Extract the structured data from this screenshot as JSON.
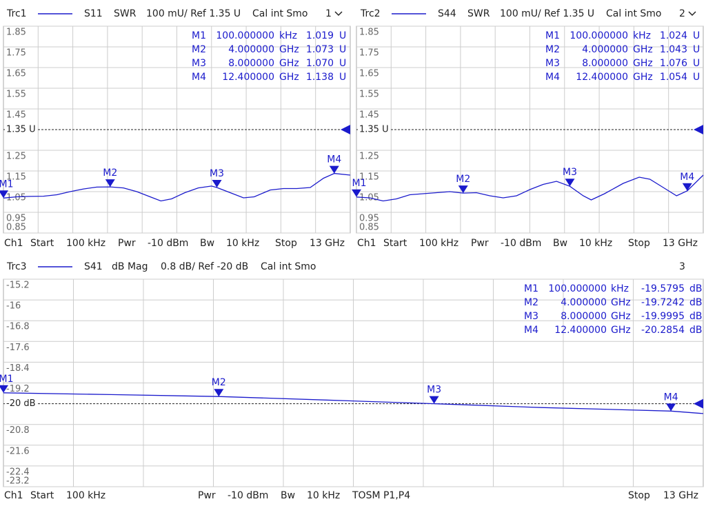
{
  "chart_data": [
    {
      "type": "line",
      "trace": "Trc1",
      "parameter": "S11",
      "format": "SWR",
      "scale": "100 mU/ Ref 1.35 U",
      "cal": "Cal int Smo",
      "number": "1",
      "color": "#1a1acc",
      "xlim": [
        0.0001,
        13
      ],
      "ylim": [
        0.85,
        1.85
      ],
      "yticks": [
        1.85,
        1.75,
        1.65,
        1.55,
        1.45,
        {
          "value": 1.35,
          "label": "1.35 U"
        },
        1.25,
        1.15,
        1.05,
        0.95,
        0.85
      ],
      "x": [
        0.0001,
        0.5,
        1,
        1.5,
        2,
        2.5,
        3,
        3.5,
        4,
        4.5,
        5,
        5.5,
        5.9,
        6.3,
        6.8,
        7.3,
        7.8,
        8,
        8.5,
        9,
        9.4,
        10,
        10.5,
        11,
        11.5,
        12,
        12.4,
        13
      ],
      "values": [
        1.019,
        1.025,
        1.027,
        1.028,
        1.035,
        1.05,
        1.063,
        1.072,
        1.073,
        1.068,
        1.05,
        1.025,
        1.005,
        1.015,
        1.045,
        1.068,
        1.077,
        1.07,
        1.045,
        1.02,
        1.025,
        1.058,
        1.065,
        1.065,
        1.07,
        1.115,
        1.138,
        1.13
      ],
      "markers": [
        {
          "name": "M1",
          "x": 0.0001,
          "x_label": "100.000000",
          "x_unit": "kHz",
          "value": 1.019,
          "unit": "U"
        },
        {
          "name": "M2",
          "x": 4,
          "x_label": "4.000000",
          "x_unit": "GHz",
          "value": 1.073,
          "unit": "U"
        },
        {
          "name": "M3",
          "x": 8,
          "x_label": "8.000000",
          "x_unit": "GHz",
          "value": 1.07,
          "value_label": "1.070",
          "unit": "U"
        },
        {
          "name": "M4",
          "x": 12.4,
          "x_label": "12.400000",
          "x_unit": "GHz",
          "value": 1.138,
          "unit": "U"
        }
      ],
      "footer": [
        "Ch1",
        "Start",
        "100 kHz",
        "Pwr",
        "-10 dBm",
        "Bw",
        "10 kHz",
        "Stop",
        "13 GHz"
      ]
    },
    {
      "type": "line",
      "trace": "Trc2",
      "parameter": "S44",
      "format": "SWR",
      "scale": "100 mU/ Ref 1.35 U",
      "cal": "Cal int Smo",
      "number": "2",
      "color": "#1a1acc",
      "xlim": [
        0.0001,
        13
      ],
      "ylim": [
        0.85,
        1.85
      ],
      "yticks": [
        1.85,
        1.75,
        1.65,
        1.55,
        1.45,
        {
          "value": 1.35,
          "label": "1.35 U"
        },
        1.25,
        1.15,
        1.05,
        0.95,
        0.85
      ],
      "x": [
        0.0001,
        0.5,
        1,
        1.5,
        2,
        2.5,
        3,
        3.5,
        4,
        4.5,
        5,
        5.5,
        6,
        6.5,
        7,
        7.5,
        8,
        8.5,
        8.8,
        9.3,
        10,
        10.6,
        11,
        11.5,
        12,
        12.4,
        13
      ],
      "values": [
        1.024,
        1.02,
        1.005,
        1.015,
        1.035,
        1.04,
        1.045,
        1.05,
        1.043,
        1.045,
        1.03,
        1.02,
        1.03,
        1.06,
        1.085,
        1.1,
        1.076,
        1.03,
        1.01,
        1.04,
        1.09,
        1.12,
        1.11,
        1.07,
        1.03,
        1.054,
        1.13
      ],
      "markers": [
        {
          "name": "M1",
          "x": 0.0001,
          "x_label": "100.000000",
          "x_unit": "kHz",
          "value": 1.024,
          "unit": "U"
        },
        {
          "name": "M2",
          "x": 4,
          "x_label": "4.000000",
          "x_unit": "GHz",
          "value": 1.043,
          "unit": "U"
        },
        {
          "name": "M3",
          "x": 8,
          "x_label": "8.000000",
          "x_unit": "GHz",
          "value": 1.076,
          "unit": "U"
        },
        {
          "name": "M4",
          "x": 12.4,
          "x_label": "12.400000",
          "x_unit": "GHz",
          "value": 1.054,
          "unit": "U"
        }
      ],
      "footer": [
        "Ch1",
        "Start",
        "100 kHz",
        "Pwr",
        "-10 dBm",
        "Bw",
        "10 kHz",
        "Stop",
        "13 GHz"
      ]
    },
    {
      "type": "line",
      "trace": "Trc3",
      "parameter": "S41",
      "format": "dB Mag",
      "scale": "0.8 dB/ Ref -20 dB",
      "cal": "Cal int Smo",
      "number": "3",
      "color": "#1a1acc",
      "xlim": [
        0.0001,
        13
      ],
      "ylim": [
        -23.2,
        -15.2
      ],
      "yticks": [
        -15.2,
        -16,
        -16.8,
        -17.6,
        -18.4,
        -19.2,
        {
          "value": -20,
          "label": "-20 dB"
        },
        -20.8,
        -21.6,
        -22.4,
        -23.2
      ],
      "x": [
        0.0001,
        2,
        4,
        6,
        8,
        10,
        12.4,
        13
      ],
      "values": [
        -19.5795,
        -19.65,
        -19.7242,
        -19.86,
        -19.9995,
        -20.15,
        -20.2854,
        -20.38
      ],
      "markers": [
        {
          "name": "M1",
          "x": 0.0001,
          "x_label": "100.000000",
          "x_unit": "kHz",
          "value": -19.5795,
          "unit": "dB"
        },
        {
          "name": "M2",
          "x": 4,
          "x_label": "4.000000",
          "x_unit": "GHz",
          "value": -19.7242,
          "unit": "dB"
        },
        {
          "name": "M3",
          "x": 8,
          "x_label": "8.000000",
          "x_unit": "GHz",
          "value": -19.9995,
          "unit": "dB"
        },
        {
          "name": "M4",
          "x": 12.4,
          "x_label": "12.400000",
          "x_unit": "GHz",
          "value": -20.2854,
          "unit": "dB"
        }
      ],
      "footer": [
        "Ch1",
        "Start",
        "100 kHz",
        "Pwr",
        "-10 dBm",
        "Bw",
        "10 kHz",
        "TOSM P1,P4",
        "Stop",
        "13 GHz"
      ]
    }
  ]
}
